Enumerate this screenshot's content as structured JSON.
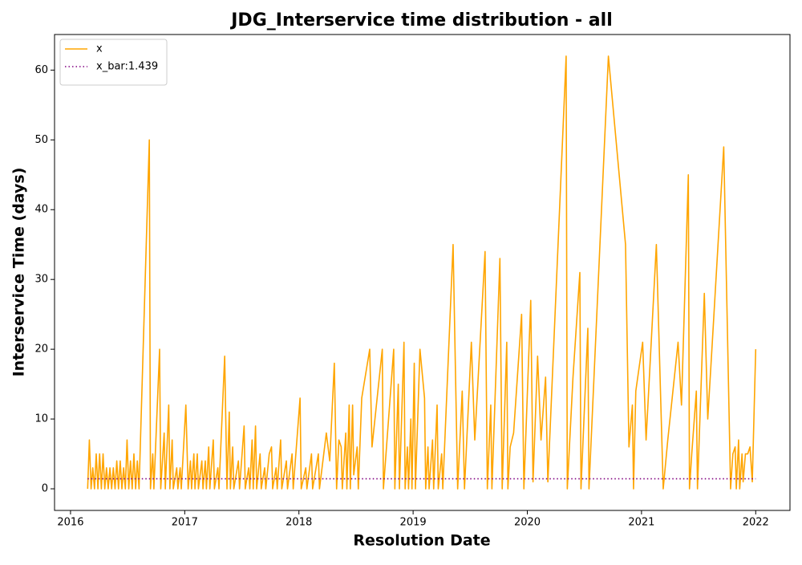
{
  "chart_data": {
    "type": "line",
    "title": "JDG_Interservice time distribution - all",
    "xlabel": "Resolution Date",
    "ylabel": "Interservice Time (days)",
    "xlim": [
      2015.86,
      2022.3
    ],
    "ylim": [
      -3.1,
      65.1
    ],
    "xticks": [
      2016,
      2017,
      2018,
      2019,
      2020,
      2021,
      2022
    ],
    "yticks": [
      0,
      10,
      20,
      30,
      40,
      50,
      60
    ],
    "legend": "upper left",
    "grid": false,
    "series": [
      {
        "name": "x",
        "color": "#ffa500",
        "linestyle": "solid",
        "x": [
          2016.15,
          2016.165,
          2016.18,
          2016.195,
          2016.21,
          2016.225,
          2016.24,
          2016.255,
          2016.27,
          2016.285,
          2016.3,
          2016.315,
          2016.33,
          2016.345,
          2016.36,
          2016.375,
          2016.39,
          2016.405,
          2016.42,
          2016.435,
          2016.45,
          2016.465,
          2016.48,
          2016.495,
          2016.51,
          2016.525,
          2016.54,
          2016.555,
          2016.57,
          2016.585,
          2016.6,
          2016.69,
          2016.7,
          2016.72,
          2016.73,
          2016.78,
          2016.79,
          2016.82,
          2016.83,
          2016.86,
          2016.87,
          2016.89,
          2016.9,
          2016.93,
          2016.94,
          2016.96,
          2016.97,
          2017.01,
          2017.03,
          2017.05,
          2017.06,
          2017.08,
          2017.09,
          2017.11,
          2017.12,
          2017.15,
          2017.16,
          2017.18,
          2017.19,
          2017.21,
          2017.22,
          2017.25,
          2017.26,
          2017.29,
          2017.3,
          2017.35,
          2017.37,
          2017.39,
          2017.4,
          2017.42,
          2017.43,
          2017.47,
          2017.48,
          2017.52,
          2017.53,
          2017.56,
          2017.57,
          2017.59,
          2017.6,
          2017.62,
          2017.63,
          2017.66,
          2017.67,
          2017.7,
          2017.71,
          2017.74,
          2017.76,
          2017.77,
          2017.8,
          2017.81,
          2017.84,
          2017.85,
          2017.89,
          2017.9,
          2017.94,
          2017.95,
          2018.01,
          2018.02,
          2018.06,
          2018.07,
          2018.11,
          2018.12,
          2018.17,
          2018.18,
          2018.24,
          2018.27,
          2018.31,
          2018.33,
          2018.35,
          2018.37,
          2018.38,
          2018.41,
          2018.42,
          2018.44,
          2018.45,
          2018.47,
          2018.48,
          2018.51,
          2018.52,
          2018.55,
          2018.62,
          2018.64,
          2018.73,
          2018.74,
          2018.83,
          2018.84,
          2018.87,
          2018.88,
          2018.92,
          2018.93,
          2018.95,
          2018.96,
          2018.98,
          2018.99,
          2019.01,
          2019.02,
          2019.06,
          2019.1,
          2019.11,
          2019.13,
          2019.14,
          2019.17,
          2019.18,
          2019.21,
          2019.22,
          2019.25,
          2019.26,
          2019.35,
          2019.39,
          2019.43,
          2019.45,
          2019.51,
          2019.54,
          2019.63,
          2019.65,
          2019.68,
          2019.69,
          2019.76,
          2019.78,
          2019.82,
          2019.83,
          2019.85,
          2019.88,
          2019.95,
          2019.97,
          2020.03,
          2020.05,
          2020.09,
          2020.12,
          2020.16,
          2020.18,
          2020.34,
          2020.35,
          2020.4,
          2020.46,
          2020.47,
          2020.53,
          2020.54,
          2020.71,
          2020.86,
          2020.89,
          2020.9,
          2020.92,
          2020.93,
          2020.95,
          2021.01,
          2021.04,
          2021.13,
          2021.19,
          2021.23,
          2021.32,
          2021.35,
          2021.41,
          2021.42,
          2021.44,
          2021.48,
          2021.49,
          2021.55,
          2021.58,
          2021.62,
          2021.72,
          2021.78,
          2021.8,
          2021.82,
          2021.83,
          2021.85,
          2021.86,
          2021.88,
          2021.89,
          2021.91,
          2021.93,
          2021.95,
          2021.97,
          2022.0
        ],
        "values": [
          0,
          7,
          0,
          3,
          0,
          5,
          0,
          5,
          0,
          5,
          0,
          3,
          0,
          3,
          0,
          3,
          0,
          4,
          0,
          4,
          0,
          3,
          0,
          7,
          0,
          4,
          0,
          5,
          0,
          4,
          0,
          50,
          0,
          5,
          0,
          20,
          0,
          8,
          0,
          12,
          0,
          7,
          0,
          3,
          0,
          3,
          0,
          12,
          0,
          4,
          0,
          5,
          0,
          5,
          0,
          4,
          0,
          4,
          0,
          6,
          0,
          7,
          0,
          3,
          0,
          19,
          0,
          11,
          0,
          6,
          0,
          4,
          0,
          9,
          0,
          3,
          0,
          7,
          0,
          9,
          0,
          5,
          0,
          3,
          0,
          5,
          6,
          0,
          3,
          0,
          7,
          0,
          4,
          0,
          5,
          0,
          13,
          0,
          3,
          0,
          5,
          0,
          5,
          0,
          8,
          4,
          18,
          0,
          7,
          6,
          0,
          8,
          0,
          12,
          0,
          12,
          2,
          6,
          0,
          13,
          20,
          6,
          20,
          0,
          20,
          0,
          15,
          0,
          21,
          0,
          6,
          0,
          10,
          0,
          18,
          0,
          20,
          13,
          0,
          6,
          0,
          7,
          0,
          12,
          0,
          5,
          0,
          35,
          0,
          14,
          0,
          21,
          7,
          34,
          0,
          12,
          0,
          33,
          0,
          21,
          0,
          6,
          8,
          25,
          0,
          27,
          1,
          19,
          7,
          16,
          1,
          62,
          0,
          16,
          31,
          0,
          23,
          0,
          62,
          35,
          6,
          8,
          12,
          0,
          14,
          21,
          7,
          35,
          0,
          7,
          21,
          12,
          45,
          0,
          5,
          14,
          0,
          28,
          10,
          21,
          49,
          0,
          5,
          6,
          0,
          7,
          0,
          5,
          1,
          5,
          5,
          6,
          1,
          20
        ]
      },
      {
        "name": "x_bar:1.439",
        "color": "#800080",
        "linestyle": "dotted",
        "x": [
          2016.15,
          2022.0
        ],
        "values": [
          1.439,
          1.439
        ]
      }
    ]
  }
}
